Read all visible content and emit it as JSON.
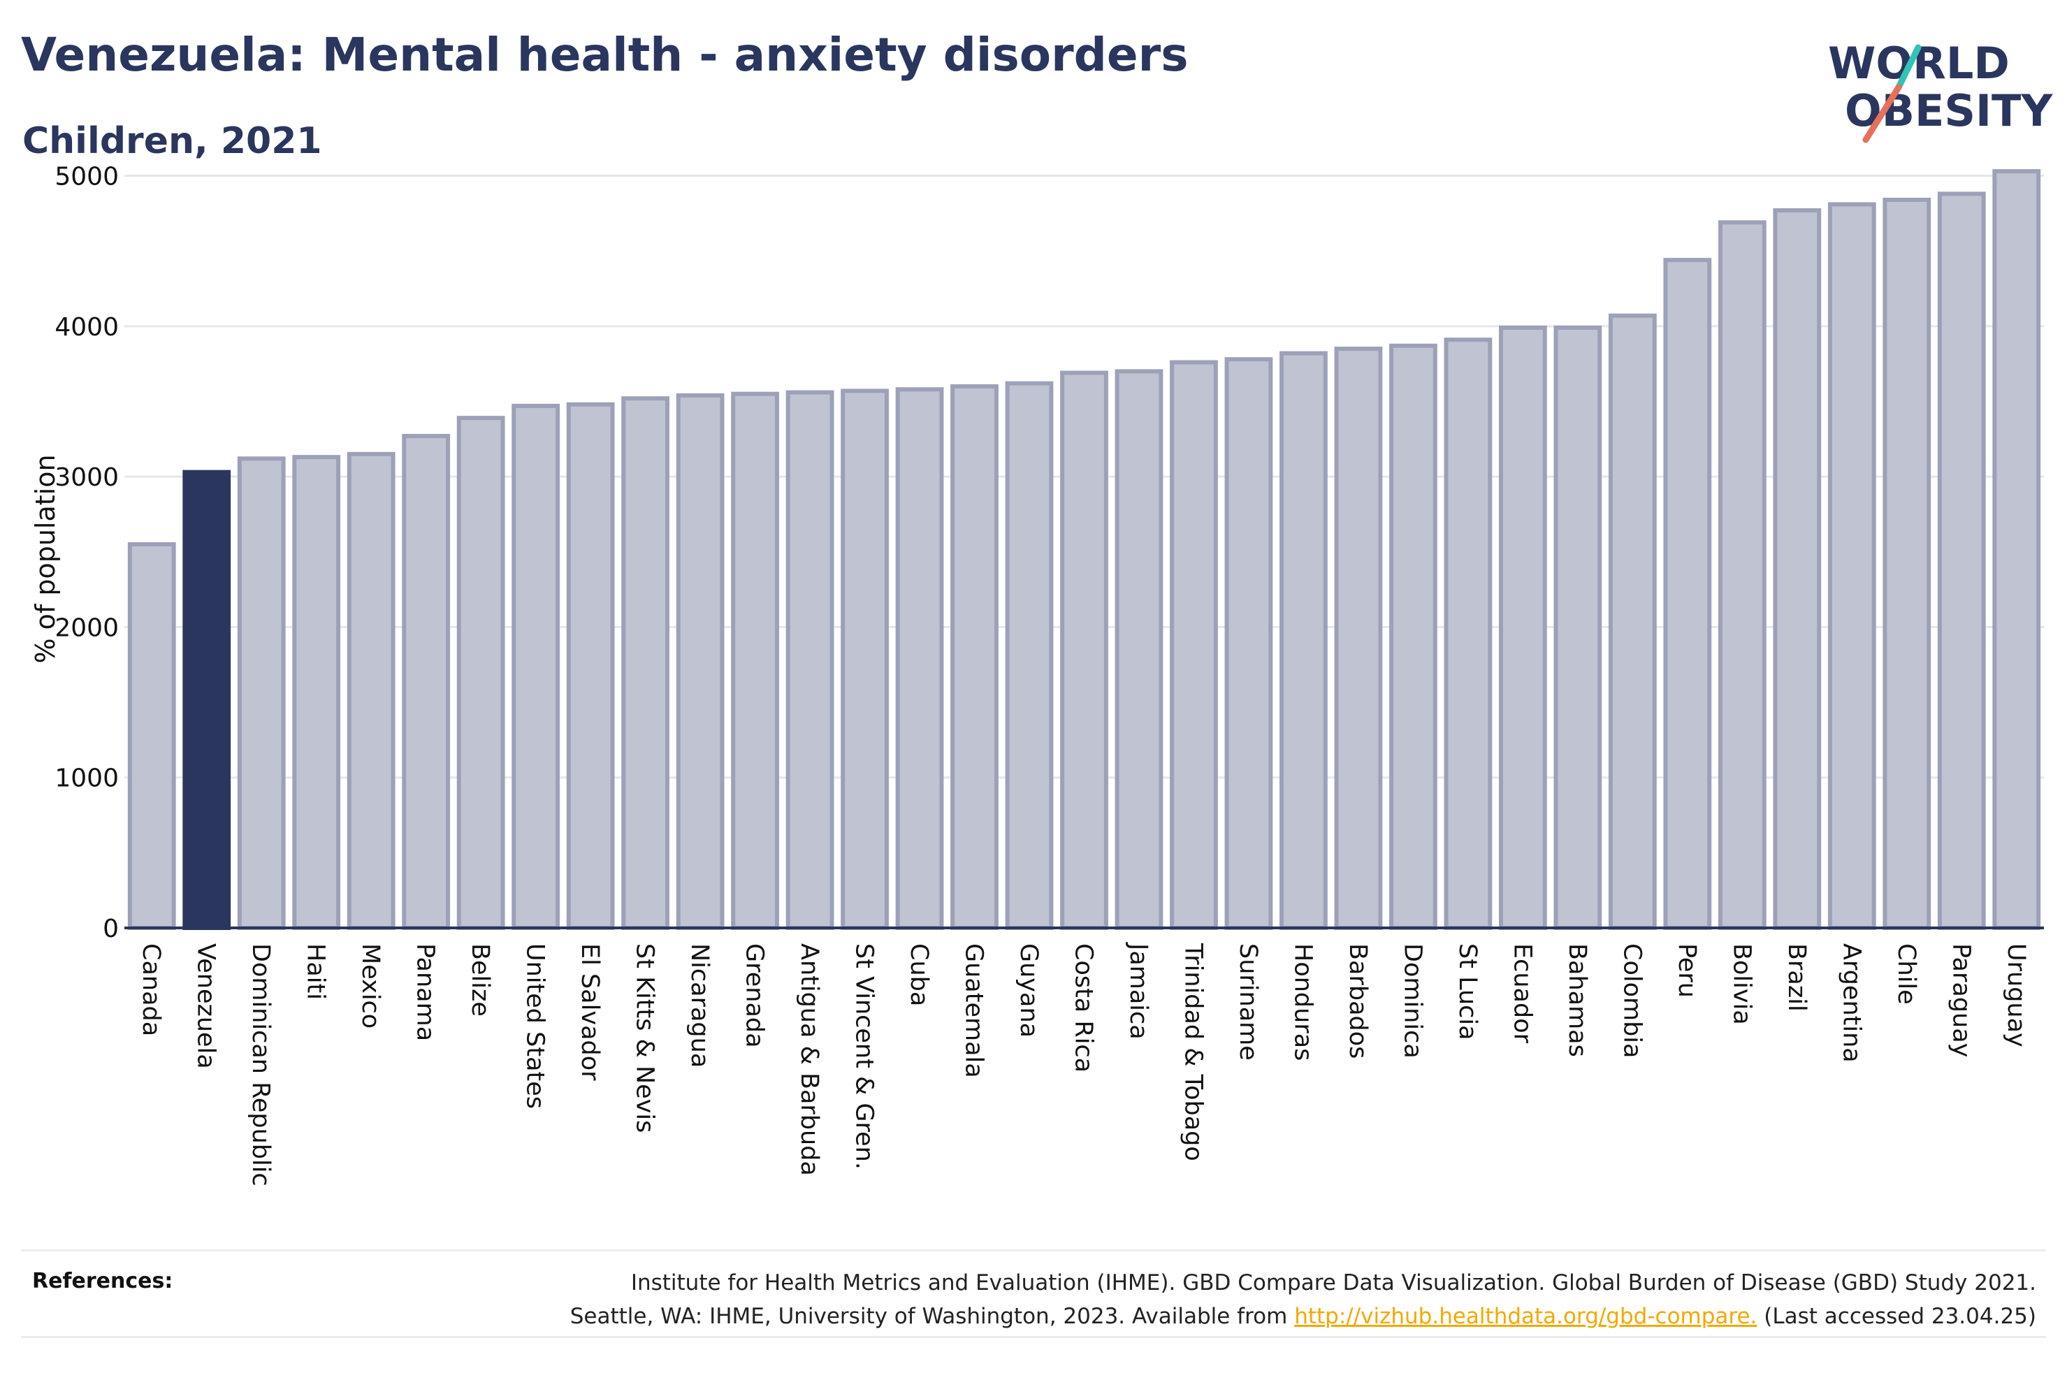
{
  "header": {
    "title": "Venezuela: Mental health - anxiety disorders",
    "subtitle": "Children, 2021"
  },
  "logo": {
    "line1": "WORLD",
    "line2": "OBESITY",
    "brand_color": "#2a365e",
    "slash_teal": "#2ec4b6",
    "slash_coral": "#e8705a"
  },
  "colors": {
    "highlight": "#2a365e",
    "bar_fill": "#c0c3d1",
    "bar_stroke": "#9ca1b8"
  },
  "chart_data": {
    "type": "bar",
    "ylabel": "% of population",
    "xlabel": "",
    "ylim": [
      0,
      5100
    ],
    "yticks": [
      0,
      1000,
      2000,
      3000,
      4000,
      5000
    ],
    "grid": true,
    "highlight": "Venezuela",
    "categories": [
      "Canada",
      "Venezuela",
      "Dominican Republic",
      "Haiti",
      "Mexico",
      "Panama",
      "Belize",
      "United States",
      "El Salvador",
      "St Kitts & Nevis",
      "Nicaragua",
      "Grenada",
      "Antigua & Barbuda",
      "St Vincent & Gren.",
      "Cuba",
      "Guatemala",
      "Guyana",
      "Costa Rica",
      "Jamaica",
      "Trinidad & Tobago",
      "Suriname",
      "Honduras",
      "Barbados",
      "Dominica",
      "St Lucia",
      "Ecuador",
      "Bahamas",
      "Colombia",
      "Peru",
      "Bolivia",
      "Brazil",
      "Argentina",
      "Chile",
      "Paraguay",
      "Uruguay"
    ],
    "values": [
      2550,
      3030,
      3120,
      3130,
      3150,
      3270,
      3390,
      3470,
      3480,
      3520,
      3540,
      3550,
      3560,
      3570,
      3580,
      3600,
      3620,
      3690,
      3700,
      3760,
      3780,
      3820,
      3850,
      3870,
      3910,
      3990,
      3990,
      4070,
      4440,
      4690,
      4770,
      4810,
      4840,
      4880,
      5030
    ]
  },
  "references": {
    "label": "References:",
    "line1": "Institute for Health Metrics and Evaluation (IHME). GBD Compare Data Visualization. Global Burden of Disease (GBD) Study 2021.",
    "line2_pre": "Seattle, WA: IHME, University of Washington, 2023. Available from",
    "link": "http://vizhub.healthdata.org/gbd-compare.",
    "line2_post": "(Last accessed 23.04.25)"
  }
}
